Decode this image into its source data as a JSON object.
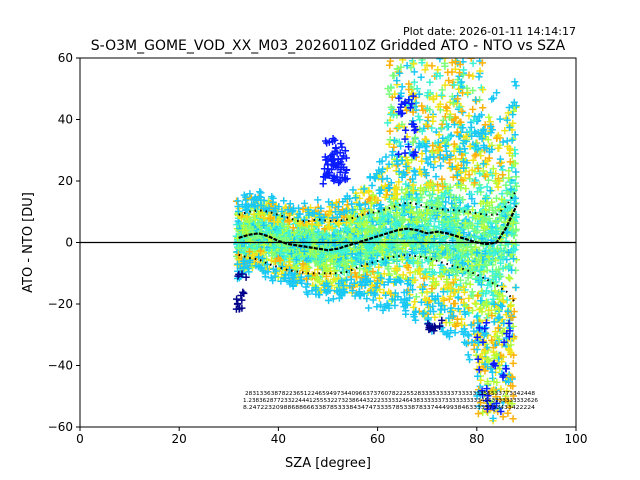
{
  "chart_data": {
    "type": "scatter",
    "title": "S-O3M_GOME_VOD_XX_M03_20260110Z Gridded ATO - NTO vs SZA",
    "plot_date": "Plot date: 2026-01-11 14:14:17",
    "xlabel": "SZA [degree]",
    "ylabel": "ATO - NTO [DU]",
    "xlim": [
      0,
      100
    ],
    "ylim": [
      -60,
      60
    ],
    "xticks": [
      0,
      20,
      40,
      60,
      80,
      100
    ],
    "yticks": [
      -60,
      -40,
      -20,
      0,
      20,
      40,
      60
    ],
    "zero_line": 0,
    "scatter_x_range": [
      31.5,
      88
    ],
    "colors": {
      "blue": "#0a1cff",
      "darkblue": "#00008a",
      "cyan": "#19c8f5",
      "aqua": "#3cf2d6",
      "green": "#7cff7a",
      "lime": "#b4ff3c",
      "yellow": "#f2e318",
      "orange": "#fdb20a",
      "black": "#000000"
    },
    "mean_curve": {
      "x": [
        32,
        34,
        36,
        38,
        40,
        42,
        44,
        46,
        48,
        50,
        52,
        54,
        56,
        58,
        60,
        62,
        64,
        66,
        68,
        70,
        72,
        74,
        76,
        78,
        80,
        82,
        84,
        86,
        88
      ],
      "y": [
        1.5,
        2.5,
        3,
        2,
        0.5,
        -0.5,
        -1,
        -1.5,
        -2,
        -2.5,
        -2,
        -1,
        0,
        1,
        2,
        3,
        4,
        4.5,
        4,
        3,
        3.5,
        3,
        2,
        1,
        0,
        -0.5,
        0,
        5,
        12
      ]
    },
    "upper_sigma_curve": {
      "x": [
        32,
        34,
        36,
        38,
        40,
        42,
        44,
        46,
        48,
        50,
        52,
        54,
        56,
        58,
        60,
        62,
        64,
        66,
        68,
        70,
        72,
        74,
        76,
        78,
        80,
        82,
        84,
        86,
        88
      ],
      "y": [
        9,
        10,
        10.5,
        10,
        9,
        8,
        7,
        7,
        7.5,
        7,
        7,
        7.5,
        8.5,
        9.5,
        10,
        11,
        12,
        13,
        12.5,
        11.5,
        11,
        10.5,
        10.5,
        10,
        9.5,
        9,
        9,
        12,
        17
      ]
    },
    "lower_sigma_curve": {
      "x": [
        32,
        34,
        36,
        38,
        40,
        42,
        44,
        46,
        48,
        50,
        52,
        54,
        56,
        58,
        60,
        62,
        64,
        66,
        68,
        70,
        72,
        74,
        76,
        78,
        80,
        82,
        84,
        86,
        88
      ],
      "y": [
        -4,
        -5,
        -5.5,
        -7,
        -8,
        -9,
        -9.5,
        -10,
        -10,
        -10,
        -10,
        -9.5,
        -8,
        -7,
        -6,
        -5,
        -4.5,
        -4,
        -4.5,
        -5,
        -6,
        -7,
        -8,
        -9,
        -10.5,
        -12,
        -14,
        -16,
        -20
      ]
    },
    "count_labels": {
      "row1": "2831336387822365122465949734409663737607822255283335333337333333355533773342448",
      "row2": "1.238362877233224441255532273238644322233333246438333333733333333334563333333332626",
      "row3": "8.24722320988688666338785333843474733357853387833744499384633333733433422224"
    }
  }
}
